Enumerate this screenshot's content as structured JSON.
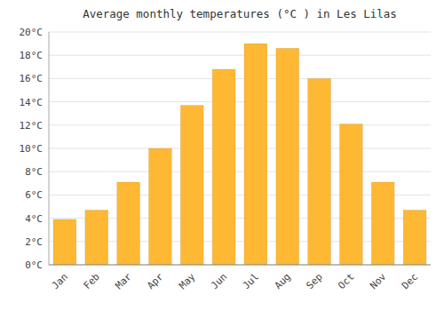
{
  "chart_data": {
    "type": "bar",
    "title": "Average monthly temperatures (°C ) in Les Lilas",
    "categories": [
      "Jan",
      "Feb",
      "Mar",
      "Apr",
      "May",
      "Jun",
      "Jul",
      "Aug",
      "Sep",
      "Oct",
      "Nov",
      "Dec"
    ],
    "values": [
      3.9,
      4.7,
      7.1,
      10.0,
      13.7,
      16.8,
      19.0,
      18.6,
      16.0,
      12.1,
      7.1,
      4.7
    ],
    "color": "#FFB833",
    "ylim": [
      0,
      20
    ],
    "yticks": [
      {
        "value": 0,
        "label": "0°C"
      },
      {
        "value": 2,
        "label": "2°C"
      },
      {
        "value": 4,
        "label": "4°C"
      },
      {
        "value": 6,
        "label": "6°C"
      },
      {
        "value": 8,
        "label": "8°C"
      },
      {
        "value": 10,
        "label": "10°C"
      },
      {
        "value": 12,
        "label": "12°C"
      },
      {
        "value": 14,
        "label": "14°C"
      },
      {
        "value": 16,
        "label": "16°C"
      },
      {
        "value": 18,
        "label": "18°C"
      },
      {
        "value": 20,
        "label": "20°C"
      }
    ],
    "grid": true
  }
}
